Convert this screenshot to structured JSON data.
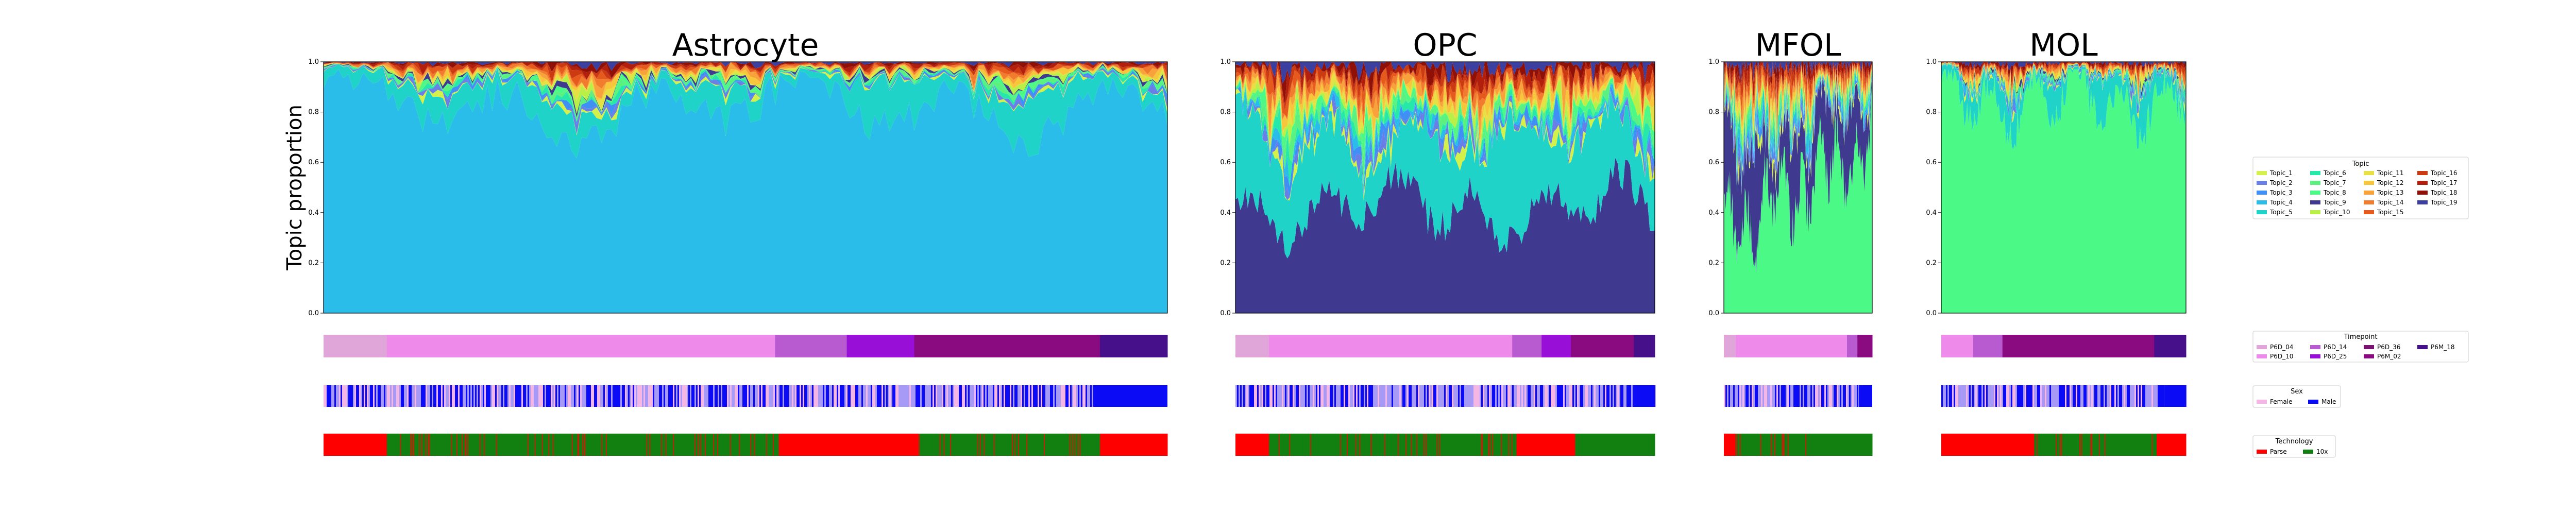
{
  "chart_data": {
    "type": "area",
    "ylabel": "Topic proportion",
    "ylim": [
      0,
      1
    ],
    "yticks": [
      "0.0",
      "0.2",
      "0.4",
      "0.6",
      "0.8",
      "1.0"
    ],
    "panels": [
      {
        "title": "Astrocyte",
        "dominant_topic": "Topic_4",
        "secondary_topic": "Topic_5",
        "dominant_mean": 0.82,
        "timepoint_fractions": [
          [
            "P6D_04",
            0.075
          ],
          [
            "P6D_10",
            0.46
          ],
          [
            "P6D_14",
            0.085
          ],
          [
            "P6D_25",
            0.08
          ],
          [
            "P6M_02",
            0.22
          ],
          [
            "P6M_18",
            0.08
          ]
        ],
        "sex_mix_male": 0.4,
        "technology_segments": [
          [
            "Parse",
            0.075
          ],
          [
            "10x",
            0.225
          ],
          [
            "10x",
            0.24
          ],
          [
            "Parse",
            0.165
          ],
          [
            "10x",
            0.11
          ],
          [
            "10x",
            0.105
          ],
          [
            "Parse",
            0.08
          ]
        ]
      },
      {
        "title": "OPC",
        "dominant_topic": "Topic_9",
        "secondary_topic": "Topic_5",
        "dominant_mean": 0.42,
        "timepoint_fractions": [
          [
            "P6D_04",
            0.08
          ],
          [
            "P6D_10",
            0.58
          ],
          [
            "P6D_14",
            0.07
          ],
          [
            "P6D_25",
            0.07
          ],
          [
            "P6M_02",
            0.15
          ],
          [
            "P6M_18",
            0.05
          ]
        ],
        "sex_mix_male": 0.4,
        "technology_segments": [
          [
            "Parse",
            0.08
          ],
          [
            "10x",
            0.25
          ],
          [
            "10x",
            0.34
          ],
          [
            "Parse",
            0.14
          ],
          [
            "10x",
            0.19
          ]
        ]
      },
      {
        "title": "MFOL",
        "dominant_topic": "Topic_8",
        "secondary_topic": "Topic_9",
        "dominant_mean": 0.45,
        "timepoint_fractions": [
          [
            "P6D_04",
            0.08
          ],
          [
            "P6D_10",
            0.75
          ],
          [
            "P6D_14",
            0.07
          ],
          [
            "P6M_02",
            0.1
          ]
        ],
        "sex_mix_male": 0.4,
        "technology_segments": [
          [
            "Parse",
            0.08
          ],
          [
            "10x",
            0.56
          ],
          [
            "10x",
            0.36
          ]
        ]
      },
      {
        "title": "MOL",
        "dominant_topic": "Topic_8",
        "secondary_topic": "Topic_5",
        "dominant_mean": 0.85,
        "timepoint_fractions": [
          [
            "P6D_10",
            0.13
          ],
          [
            "P6D_14",
            0.12
          ],
          [
            "P6M_02",
            0.62
          ],
          [
            "P6M_18",
            0.13
          ]
        ],
        "sex_mix_male": 0.4,
        "technology_segments": [
          [
            "Parse",
            0.13
          ],
          [
            "Parse",
            0.25
          ],
          [
            "10x",
            0.5
          ],
          [
            "Parse",
            0.12
          ]
        ]
      }
    ],
    "legends": {
      "topic": {
        "title": "Topic",
        "entries": [
          {
            "label": "Topic_1",
            "color": "#d4f04a"
          },
          {
            "label": "Topic_2",
            "color": "#6a7fe6"
          },
          {
            "label": "Topic_3",
            "color": "#3f8ff5"
          },
          {
            "label": "Topic_4",
            "color": "#2bbdea"
          },
          {
            "label": "Topic_5",
            "color": "#1fd3c8"
          },
          {
            "label": "Topic_6",
            "color": "#26e8a8"
          },
          {
            "label": "Topic_7",
            "color": "#5cf080"
          },
          {
            "label": "Topic_8",
            "color": "#4bfa86"
          },
          {
            "label": "Topic_9",
            "color": "#3f3a8f"
          },
          {
            "label": "Topic_10",
            "color": "#b8f048"
          },
          {
            "label": "Topic_11",
            "color": "#e6e045"
          },
          {
            "label": "Topic_12",
            "color": "#f7c63a"
          },
          {
            "label": "Topic_13",
            "color": "#f8a23c"
          },
          {
            "label": "Topic_14",
            "color": "#f27c2e"
          },
          {
            "label": "Topic_15",
            "color": "#e75a1d"
          },
          {
            "label": "Topic_16",
            "color": "#cc3a12"
          },
          {
            "label": "Topic_17",
            "color": "#b21f0c"
          },
          {
            "label": "Topic_18",
            "color": "#8e1006"
          },
          {
            "label": "Topic_19",
            "color": "#3b3fa0"
          }
        ]
      },
      "timepoint": {
        "title": "Timepoint",
        "entries": [
          {
            "label": "P6D_04",
            "color": "#e0a6d9"
          },
          {
            "label": "P6D_10",
            "color": "#ee8aea"
          },
          {
            "label": "P6D_14",
            "color": "#b85ad0"
          },
          {
            "label": "P6D_25",
            "color": "#9810d8"
          },
          {
            "label": "P6D_36",
            "color": "#7a1470"
          },
          {
            "label": "P6M_02",
            "color": "#8a0a80"
          },
          {
            "label": "P6M_18",
            "color": "#46108a"
          }
        ]
      },
      "sex": {
        "title": "Sex",
        "entries": [
          {
            "label": "Female",
            "color": "#f4b6e4"
          },
          {
            "label": "Male",
            "color": "#0b0bf5"
          }
        ]
      },
      "technology": {
        "title": "Technology",
        "entries": [
          {
            "label": "Parse",
            "color": "#ff0000"
          },
          {
            "label": "10x",
            "color": "#118011"
          }
        ]
      }
    }
  }
}
